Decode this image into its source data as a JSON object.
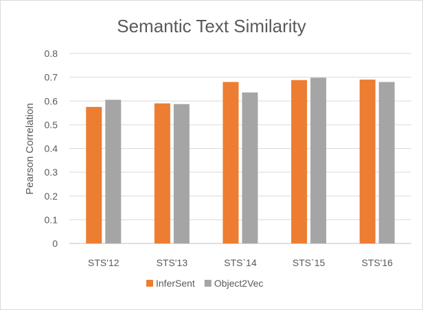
{
  "chart_data": {
    "type": "bar",
    "title": "Semantic Text Similarity",
    "xlabel": "",
    "ylabel": "Pearson Correlation",
    "ylim": [
      0,
      0.8
    ],
    "yticks": [
      "0",
      "0.1",
      "0.2",
      "0.3",
      "0.4",
      "0.5",
      "0.6",
      "0.7",
      "0.8"
    ],
    "categories": [
      "STS'12",
      "STS'13",
      "STS`14",
      "STS`15",
      "STS'16"
    ],
    "series": [
      {
        "name": "InferSent",
        "color": "#ed7d31",
        "values": [
          0.575,
          0.59,
          0.68,
          0.688,
          0.69
        ]
      },
      {
        "name": "Object2Vec",
        "color": "#a5a5a5",
        "values": [
          0.605,
          0.587,
          0.636,
          0.698,
          0.68
        ]
      }
    ],
    "grid": true,
    "legend": "bottom-center"
  }
}
